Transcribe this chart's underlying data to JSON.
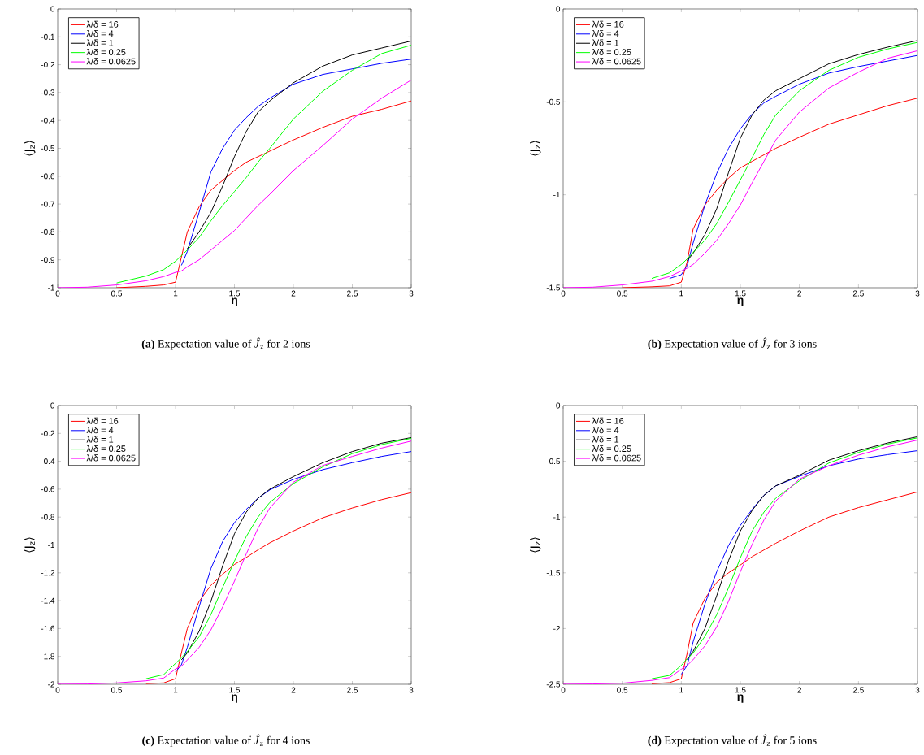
{
  "chart_data": [
    {
      "type": "line",
      "title": "**(a)** Expectation value of *Ĵ*$_{z}$ for 2 ions",
      "xlabel": "η",
      "ylabel": "⟨J$_{z}$⟩",
      "xlim": [
        0,
        3
      ],
      "ylim": [
        -1,
        0
      ],
      "xticks": [
        0,
        0.5,
        1,
        1.5,
        2,
        2.5,
        3
      ],
      "yticks": [
        -1,
        -0.9,
        -0.8,
        -0.7,
        -0.6,
        -0.5,
        -0.4,
        -0.3,
        -0.2,
        -0.1,
        0
      ],
      "legend": "top left",
      "grid": false,
      "marker": "none",
      "x": [
        0,
        0.25,
        0.5,
        0.75,
        0.9,
        1,
        1.05,
        1.1,
        1.2,
        1.3,
        1.4,
        1.5,
        1.6,
        1.7,
        1.8,
        2,
        2.25,
        2.5,
        2.75,
        3
      ],
      "series": [
        {
          "name": "λ/δ = 16",
          "color": "#ff0000",
          "values": [
            null,
            null,
            -1,
            -0.995,
            -0.99,
            -0.98,
            -0.89,
            -0.8,
            -0.71,
            -0.65,
            -0.615,
            -0.58,
            -0.55,
            -0.53,
            -0.51,
            -0.47,
            -0.425,
            -0.385,
            -0.36,
            -0.33
          ]
        },
        {
          "name": "λ/δ = 4",
          "color": "#0000ff",
          "values": [
            null,
            null,
            null,
            null,
            null,
            null,
            -0.92,
            -0.87,
            -0.73,
            -0.585,
            -0.5,
            -0.435,
            -0.39,
            -0.35,
            -0.32,
            -0.27,
            -0.235,
            -0.215,
            -0.195,
            -0.18
          ]
        },
        {
          "name": "λ/δ = 1",
          "color": "#000000",
          "values": [
            null,
            null,
            null,
            null,
            null,
            null,
            null,
            -0.86,
            -0.8,
            -0.73,
            -0.635,
            -0.53,
            -0.44,
            -0.37,
            -0.33,
            -0.265,
            -0.205,
            -0.165,
            -0.14,
            -0.115
          ]
        },
        {
          "name": "λ/δ = 0.25",
          "color": "#00ff00",
          "values": [
            null,
            null,
            -0.983,
            -0.958,
            -0.935,
            -0.905,
            -0.885,
            -0.865,
            -0.82,
            -0.76,
            -0.705,
            -0.655,
            -0.605,
            -0.55,
            -0.5,
            -0.395,
            -0.295,
            -0.22,
            -0.16,
            -0.13
          ]
        },
        {
          "name": "λ/δ = 0.0625",
          "color": "#ff00ff",
          "values": [
            -1,
            -0.998,
            -0.99,
            -0.975,
            -0.96,
            -0.945,
            -0.94,
            -0.925,
            -0.9,
            -0.865,
            -0.83,
            -0.795,
            -0.75,
            -0.705,
            -0.665,
            -0.58,
            -0.49,
            -0.395,
            -0.32,
            -0.255
          ]
        }
      ]
    },
    {
      "type": "line",
      "title": "**(b)** Expectation value of *Ĵ*$_{z}$ for 3 ions",
      "xlabel": "η",
      "ylabel": "⟨J$_{z}$⟩",
      "xlim": [
        0,
        3
      ],
      "ylim": [
        -1.5,
        0
      ],
      "xticks": [
        0,
        0.5,
        1,
        1.5,
        2,
        2.5,
        3
      ],
      "yticks": [
        -1.5,
        -1,
        -0.5,
        0
      ],
      "legend": "top left",
      "grid": false,
      "marker": "none",
      "x": [
        0,
        0.25,
        0.5,
        0.75,
        0.9,
        1,
        1.05,
        1.1,
        1.2,
        1.3,
        1.4,
        1.5,
        1.6,
        1.7,
        1.8,
        2,
        2.25,
        2.5,
        2.75,
        3
      ],
      "series": [
        {
          "name": "λ/δ = 16",
          "color": "#ff0000",
          "values": [
            null,
            null,
            -1.5,
            -1.495,
            -1.49,
            -1.47,
            -1.36,
            -1.185,
            -1.055,
            -0.975,
            -0.91,
            -0.855,
            -0.82,
            -0.785,
            -0.75,
            -0.69,
            -0.62,
            -0.57,
            -0.52,
            -0.48
          ]
        },
        {
          "name": "λ/δ = 4",
          "color": "#0000ff",
          "values": [
            null,
            null,
            null,
            null,
            -1.45,
            -1.43,
            -1.38,
            -1.26,
            -1.055,
            -0.885,
            -0.75,
            -0.645,
            -0.565,
            -0.505,
            -0.47,
            -0.405,
            -0.345,
            -0.31,
            -0.28,
            -0.25
          ]
        },
        {
          "name": "λ/δ = 1",
          "color": "#000000",
          "values": [
            null,
            null,
            null,
            null,
            null,
            null,
            -1.355,
            -1.315,
            -1.215,
            -1.075,
            -0.88,
            -0.695,
            -0.57,
            -0.49,
            -0.44,
            -0.375,
            -0.295,
            -0.245,
            -0.205,
            -0.17
          ]
        },
        {
          "name": "λ/δ = 0.25",
          "color": "#00ff00",
          "values": [
            null,
            null,
            null,
            -1.45,
            -1.42,
            -1.375,
            -1.345,
            -1.31,
            -1.245,
            -1.155,
            -1.04,
            -0.92,
            -0.8,
            -0.675,
            -0.57,
            -0.44,
            -0.33,
            -0.26,
            -0.215,
            -0.18
          ]
        },
        {
          "name": "λ/δ = 0.0625",
          "color": "#ff00ff",
          "values": [
            -1.5,
            -1.497,
            -1.485,
            -1.465,
            -1.44,
            -1.41,
            -1.395,
            -1.375,
            -1.315,
            -1.245,
            -1.155,
            -1.055,
            -0.935,
            -0.82,
            -0.705,
            -0.555,
            -0.425,
            -0.34,
            -0.265,
            -0.225
          ]
        }
      ]
    },
    {
      "type": "line",
      "title": "**(c)** Expectation value of *Ĵ*$_{z}$ for 4 ions",
      "xlabel": "η",
      "ylabel": "⟨J$_{z}$⟩",
      "xlim": [
        0,
        3
      ],
      "ylim": [
        -2,
        0
      ],
      "xticks": [
        0,
        0.5,
        1,
        1.5,
        2,
        2.5,
        3
      ],
      "yticks": [
        -2,
        -1.8,
        -1.6,
        -1.4,
        -1.2,
        -1,
        -0.8,
        -0.6,
        -0.4,
        -0.2,
        0
      ],
      "legend": "top left",
      "grid": false,
      "marker": "none",
      "x": [
        0,
        0.25,
        0.5,
        0.75,
        0.9,
        1,
        1.05,
        1.1,
        1.2,
        1.3,
        1.4,
        1.5,
        1.6,
        1.7,
        1.8,
        2,
        2.25,
        2.5,
        2.75,
        3
      ],
      "series": [
        {
          "name": "λ/δ = 16",
          "color": "#ff0000",
          "values": [
            null,
            null,
            null,
            -1.995,
            -1.99,
            -1.96,
            -1.775,
            -1.6,
            -1.405,
            -1.29,
            -1.21,
            -1.14,
            -1.09,
            -1.035,
            -0.985,
            -0.9,
            -0.805,
            -0.735,
            -0.675,
            -0.625
          ]
        },
        {
          "name": "λ/δ = 4",
          "color": "#0000ff",
          "values": [
            null,
            null,
            null,
            null,
            null,
            -1.91,
            -1.86,
            -1.735,
            -1.445,
            -1.17,
            -0.975,
            -0.84,
            -0.745,
            -0.665,
            -0.605,
            -0.53,
            -0.46,
            -0.41,
            -0.365,
            -0.33
          ]
        },
        {
          "name": "λ/δ = 1",
          "color": "#000000",
          "values": [
            null,
            null,
            null,
            null,
            null,
            null,
            -1.825,
            -1.775,
            -1.62,
            -1.405,
            -1.15,
            -0.92,
            -0.765,
            -0.665,
            -0.6,
            -0.51,
            -0.41,
            -0.33,
            -0.27,
            -0.23
          ]
        },
        {
          "name": "λ/δ = 0.25",
          "color": "#00ff00",
          "values": [
            null,
            null,
            null,
            -1.96,
            -1.93,
            -1.85,
            -1.81,
            -1.765,
            -1.66,
            -1.5,
            -1.305,
            -1.115,
            -0.94,
            -0.8,
            -0.695,
            -0.56,
            -0.44,
            -0.345,
            -0.28,
            -0.235
          ]
        },
        {
          "name": "λ/δ = 0.0625",
          "color": "#ff00ff",
          "values": [
            -2,
            -1.998,
            -1.99,
            -1.975,
            -1.955,
            -1.89,
            -1.87,
            -1.825,
            -1.735,
            -1.61,
            -1.445,
            -1.26,
            -1.065,
            -0.88,
            -0.735,
            -0.55,
            -0.43,
            -0.365,
            -0.305,
            -0.255
          ]
        }
      ]
    },
    {
      "type": "line",
      "title": "**(d)** Expectation value of *Ĵ*$_{z}$ for 5 ions",
      "xlabel": "η",
      "ylabel": "⟨J$_{z}$⟩",
      "xlim": [
        0,
        3
      ],
      "ylim": [
        -2.5,
        0
      ],
      "xticks": [
        0,
        0.5,
        1,
        1.5,
        2,
        2.5,
        3
      ],
      "yticks": [
        -2.5,
        -2,
        -1.5,
        -1,
        -0.5,
        0
      ],
      "legend": "top left",
      "grid": false,
      "marker": "none",
      "x": [
        0,
        0.25,
        0.5,
        0.75,
        0.9,
        1,
        1.05,
        1.1,
        1.2,
        1.3,
        1.4,
        1.5,
        1.6,
        1.7,
        1.8,
        2,
        2.25,
        2.5,
        2.75,
        3
      ],
      "series": [
        {
          "name": "λ/δ = 16",
          "color": "#ff0000",
          "values": [
            null,
            null,
            null,
            -2.495,
            -2.485,
            -2.45,
            -2.22,
            -1.95,
            -1.73,
            -1.585,
            -1.5,
            -1.43,
            -1.355,
            -1.295,
            -1.235,
            -1.125,
            -1,
            -0.915,
            -0.845,
            -0.775
          ]
        },
        {
          "name": "λ/δ = 4",
          "color": "#0000ff",
          "values": [
            null,
            null,
            null,
            null,
            null,
            -2.41,
            -2.33,
            -2.12,
            -1.78,
            -1.49,
            -1.255,
            -1.075,
            -0.93,
            -0.805,
            -0.72,
            -0.635,
            -0.54,
            -0.48,
            -0.44,
            -0.405
          ]
        },
        {
          "name": "λ/δ = 1",
          "color": "#000000",
          "values": [
            null,
            null,
            null,
            null,
            null,
            null,
            -2.28,
            -2.205,
            -2,
            -1.705,
            -1.39,
            -1.125,
            -0.94,
            -0.805,
            -0.72,
            -0.625,
            -0.49,
            -0.405,
            -0.335,
            -0.28
          ]
        },
        {
          "name": "λ/δ = 0.25",
          "color": "#00ff00",
          "values": [
            null,
            null,
            null,
            -2.45,
            -2.42,
            -2.33,
            -2.27,
            -2.22,
            -2.07,
            -1.875,
            -1.635,
            -1.365,
            -1.125,
            -0.955,
            -0.83,
            -0.675,
            -0.515,
            -0.42,
            -0.345,
            -0.29
          ]
        },
        {
          "name": "λ/δ = 0.0625",
          "color": "#ff00ff",
          "values": [
            -2.5,
            -2.497,
            -2.49,
            -2.465,
            -2.44,
            -2.365,
            -2.33,
            -2.28,
            -2.155,
            -1.985,
            -1.755,
            -1.49,
            -1.245,
            -1.025,
            -0.855,
            -0.66,
            -0.54,
            -0.445,
            -0.37,
            -0.31
          ]
        }
      ]
    }
  ]
}
